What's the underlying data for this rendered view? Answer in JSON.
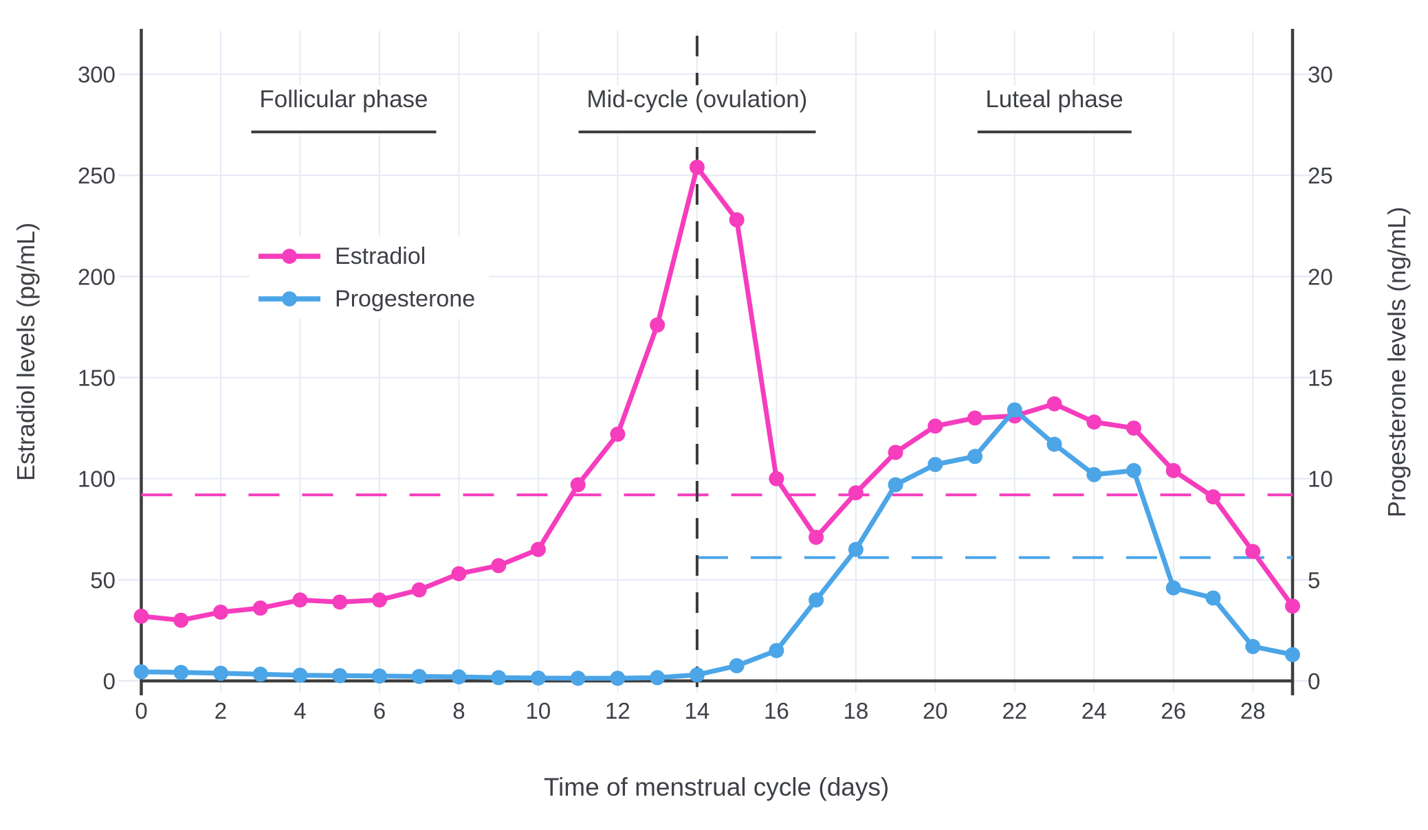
{
  "chart_data": {
    "type": "line",
    "title": "",
    "x_label": "Time of menstrual cycle (days)",
    "x": [
      0,
      1,
      2,
      3,
      4,
      5,
      6,
      7,
      8,
      9,
      10,
      11,
      12,
      13,
      14,
      15,
      16,
      17,
      18,
      19,
      20,
      21,
      22,
      23,
      24,
      25,
      26,
      27,
      28,
      29
    ],
    "x_ticks": [
      0,
      2,
      4,
      6,
      8,
      10,
      12,
      14,
      16,
      18,
      20,
      22,
      24,
      26,
      28
    ],
    "x_range": [
      0,
      29
    ],
    "grid": true,
    "legend_position": "upper-left-inside",
    "y_left": {
      "label": "Estradiol levels (pg/mL)",
      "ticks": [
        0,
        50,
        100,
        150,
        200,
        250,
        300
      ],
      "range": [
        0,
        325
      ]
    },
    "y_right": {
      "label": "Progesterone levels (ng/mL)",
      "ticks": [
        0,
        5,
        10,
        15,
        20,
        25,
        30
      ],
      "range": [
        0,
        32.5
      ]
    },
    "series": [
      {
        "name": "Estradiol",
        "y_axis": "left",
        "unit": "pg/mL",
        "color": "#F53DBD",
        "values": [
          32,
          30,
          34,
          36,
          40,
          39,
          40,
          45,
          53,
          57,
          65,
          97,
          122,
          176,
          254,
          228,
          100,
          71,
          93,
          113,
          126,
          130,
          131,
          137,
          128,
          125,
          104,
          91,
          64,
          37
        ]
      },
      {
        "name": "Progesterone",
        "y_axis": "right",
        "unit": "ng/mL",
        "color": "#4BA5E7",
        "values": [
          0.45,
          0.42,
          0.38,
          0.33,
          0.28,
          0.26,
          0.24,
          0.22,
          0.2,
          0.16,
          0.14,
          0.13,
          0.13,
          0.16,
          0.3,
          0.75,
          1.5,
          4.0,
          6.5,
          9.7,
          10.7,
          11.1,
          13.4,
          11.7,
          10.2,
          10.4,
          4.6,
          4.1,
          1.7,
          1.3
        ]
      }
    ],
    "reference_lines": [
      {
        "name": "estradiol-reference-line",
        "orientation": "horizontal",
        "axis": "left",
        "value": 92,
        "from_day": 0,
        "to_day": 29,
        "color": "#F53DBD",
        "style": "dashed"
      },
      {
        "name": "progesterone-reference-line",
        "orientation": "horizontal",
        "axis": "right",
        "value": 6.1,
        "from_day": 14,
        "to_day": 29,
        "color": "#4BA5E7",
        "style": "dashed"
      },
      {
        "name": "ovulation-day-line",
        "orientation": "vertical",
        "day": 14,
        "color": "#3A3A3A",
        "style": "dashed"
      }
    ],
    "annotations": [
      {
        "text": "Follicular phase",
        "center_day": 5.1
      },
      {
        "text": "Mid-cycle (ovulation)",
        "center_day": 14
      },
      {
        "text": "Luteal phase",
        "center_day": 23
      }
    ],
    "colors": {
      "estradiol": "#F53DBD",
      "progesterone": "#4BA5E7",
      "grid": "#E6EAF4",
      "spine": "#3E3E3E",
      "text": "#3D4046",
      "vline": "#3A3A3A",
      "background": "#FFFFFF"
    }
  }
}
